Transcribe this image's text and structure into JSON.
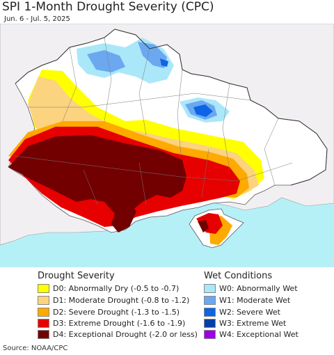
{
  "header": {
    "title": "SPI 1-Month Drought Severity (CPC)",
    "date_range": "Jun. 6 - Jul. 5, 2025"
  },
  "map": {
    "colors": {
      "land": "#f1eff2",
      "sea": "#b6f0f7",
      "D0": "#ffff00",
      "D1": "#fcd37f",
      "D2": "#ffaa00",
      "D3": "#e60000",
      "D4": "#730000",
      "W0": "#aae7f9",
      "W1": "#6ca8f0",
      "W2": "#0d64e6",
      "W3": "#0040a8",
      "W4": "#9b00e6"
    }
  },
  "legend": {
    "drought": {
      "title": "Drought Severity",
      "items": [
        {
          "label": "D0: Abnormally Dry (-0.5 to -0.7)",
          "color": "#ffff00"
        },
        {
          "label": "D1: Moderate Drought (-0.8 to -1.2)",
          "color": "#fcd37f"
        },
        {
          "label": "D2: Severe Drought (-1.3 to -1.5)",
          "color": "#ffaa00"
        },
        {
          "label": "D3: Extreme Drought (-1.6 to -1.9)",
          "color": "#e60000"
        },
        {
          "label": "D4: Exceptional Drought (-2.0 or less)",
          "color": "#730000"
        }
      ]
    },
    "wet": {
      "title": "Wet Conditions",
      "items": [
        {
          "label": "W0: Abnormally Wet",
          "color": "#aae7f9"
        },
        {
          "label": "W1: Moderate Wet",
          "color": "#6ca8f0"
        },
        {
          "label": "W2: Severe Wet",
          "color": "#0d64e6"
        },
        {
          "label": "W3: Extreme Wet",
          "color": "#0040a8"
        },
        {
          "label": "W4: Exceptional Wet",
          "color": "#9b00e6"
        }
      ]
    }
  },
  "footer": {
    "source": "Source: NOAA/CPC"
  }
}
